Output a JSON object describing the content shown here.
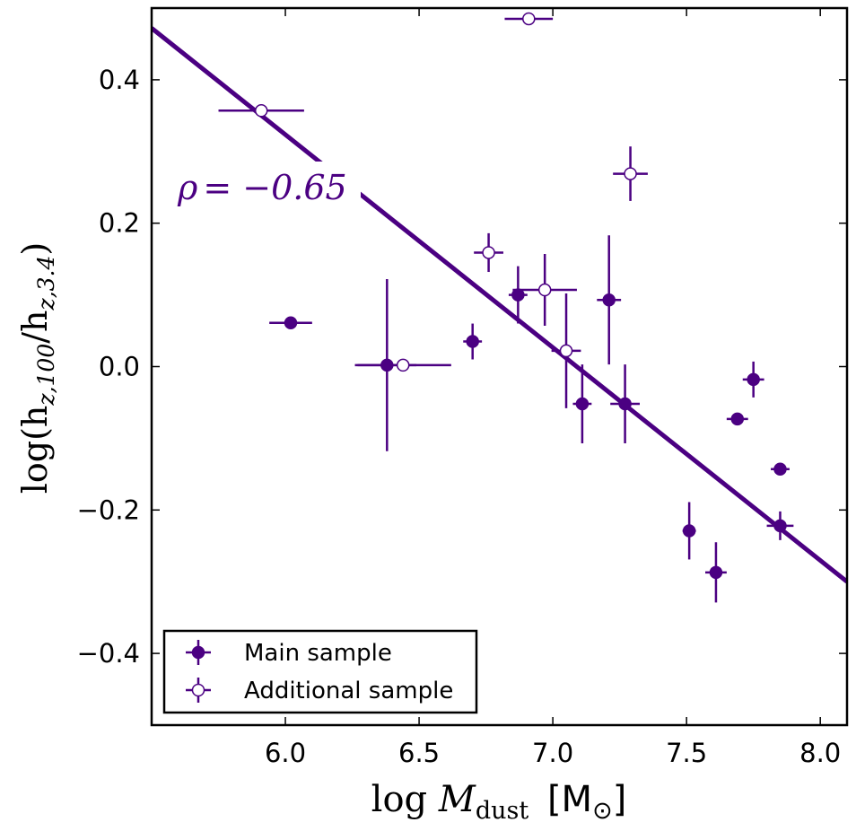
{
  "chart_data": {
    "type": "scatter",
    "xlim": [
      5.5,
      8.1
    ],
    "ylim": [
      -0.5,
      0.5
    ],
    "x_ticks": [
      6.0,
      6.5,
      7.0,
      7.5,
      8.0
    ],
    "x_tick_labels": [
      "6.0",
      "6.5",
      "7.0",
      "7.5",
      "8.0"
    ],
    "y_ticks": [
      -0.4,
      -0.2,
      0.0,
      0.2,
      0.4
    ],
    "y_tick_labels": [
      "−0.4",
      "−0.2",
      "0.0",
      "0.2",
      "0.4"
    ],
    "xlabel": {
      "prefix": "log",
      "symbol": "M",
      "subscript": "dust",
      "unit": "[M",
      "unit_sub": "⊙",
      "unit_close": "]"
    },
    "ylabel": {
      "text": "log(h",
      "sub1": "z,100",
      "mid": "/h",
      "sub2": "z,3.4",
      "close": ")"
    },
    "annotation": {
      "symbol": "ρ",
      "value": "= −0.65"
    },
    "fit_line": {
      "x": [
        5.5,
        8.1
      ],
      "y": [
        0.472,
        -0.3
      ]
    },
    "color": "#4b0082",
    "legend_position": "lower-left",
    "grid": false,
    "series": [
      {
        "name": "Main sample",
        "marker": "filled",
        "points": [
          {
            "x": 6.02,
            "y": 0.061,
            "xerr": 0.08,
            "yerr": 0.0
          },
          {
            "x": 6.38,
            "y": 0.002,
            "xerr": 0.11,
            "yerr": 0.12
          },
          {
            "x": 6.7,
            "y": 0.035,
            "xerr": 0.035,
            "yerr": 0.025
          },
          {
            "x": 6.87,
            "y": 0.1,
            "xerr": 0.035,
            "yerr": 0.04
          },
          {
            "x": 7.11,
            "y": -0.052,
            "xerr": 0.035,
            "yerr": 0.055
          },
          {
            "x": 7.21,
            "y": 0.093,
            "xerr": 0.045,
            "yerr": 0.09
          },
          {
            "x": 7.27,
            "y": -0.052,
            "xerr": 0.055,
            "yerr": 0.055
          },
          {
            "x": 7.51,
            "y": -0.229,
            "xerr": 0.025,
            "yerr": 0.04
          },
          {
            "x": 7.61,
            "y": -0.287,
            "xerr": 0.04,
            "yerr": 0.042
          },
          {
            "x": 7.69,
            "y": -0.073,
            "xerr": 0.04,
            "yerr": 0.0
          },
          {
            "x": 7.75,
            "y": -0.018,
            "xerr": 0.04,
            "yerr": 0.025
          },
          {
            "x": 7.85,
            "y": -0.143,
            "xerr": 0.035,
            "yerr": 0.0
          },
          {
            "x": 7.85,
            "y": -0.222,
            "xerr": 0.05,
            "yerr": 0.02
          }
        ]
      },
      {
        "name": "Additional sample",
        "marker": "open",
        "points": [
          {
            "x": 5.91,
            "y": 0.357,
            "xerr": 0.16,
            "yerr": 0.0
          },
          {
            "x": 6.44,
            "y": 0.002,
            "xerr": 0.18,
            "yerr": 0.0
          },
          {
            "x": 6.76,
            "y": 0.159,
            "xerr": 0.055,
            "yerr": 0.027
          },
          {
            "x": 6.91,
            "y": 0.485,
            "xerr": 0.09,
            "yerr": 0.0
          },
          {
            "x": 6.97,
            "y": 0.107,
            "xerr": 0.12,
            "yerr": 0.05
          },
          {
            "x": 7.05,
            "y": 0.022,
            "xerr": 0.055,
            "yerr": 0.08
          },
          {
            "x": 7.29,
            "y": 0.269,
            "xerr": 0.065,
            "yerr": 0.038
          }
        ]
      }
    ]
  }
}
